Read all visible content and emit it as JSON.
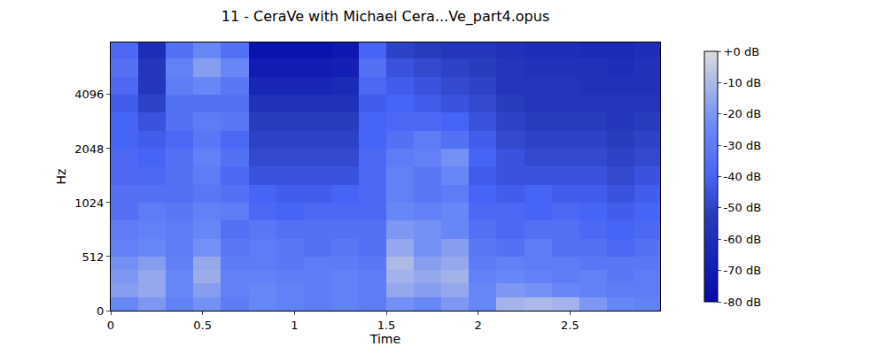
{
  "chart_data": {
    "type": "heatmap",
    "title": "11 - CeraVe with Michael Cera...Ve_part4.opus",
    "x_label": "Time",
    "y_label": "Hz",
    "x": [
      0,
      0.15,
      0.3,
      0.45,
      0.6,
      0.75,
      0.9,
      1.05,
      1.2,
      1.35,
      1.5,
      1.65,
      1.8,
      1.95,
      2.1,
      2.25,
      2.4,
      2.55,
      2.7,
      2.85,
      2.99
    ],
    "y": [
      0,
      128,
      256,
      384,
      512,
      645,
      812,
      1024,
      1290,
      1625,
      2048,
      2580,
      3251,
      4096,
      5161,
      6502,
      8000
    ],
    "cells": [
      [
        -25,
        -20,
        -28,
        -22,
        -30,
        -25,
        -28,
        -30,
        -28,
        -30,
        -22,
        -25,
        -20,
        -25,
        -12,
        -10,
        -12,
        -20,
        -25,
        -28
      ],
      [
        -18,
        -15,
        -25,
        -18,
        -28,
        -25,
        -28,
        -30,
        -28,
        -30,
        -15,
        -18,
        -15,
        -25,
        -20,
        -22,
        -25,
        -28,
        -30,
        -30
      ],
      [
        -20,
        -15,
        -25,
        -14,
        -28,
        -28,
        -30,
        -30,
        -28,
        -30,
        -12,
        -15,
        -12,
        -28,
        -25,
        -28,
        -30,
        -28,
        -32,
        -30
      ],
      [
        -22,
        -18,
        -28,
        -15,
        -30,
        -30,
        -32,
        -30,
        -30,
        -32,
        -10,
        -18,
        -15,
        -30,
        -28,
        -30,
        -30,
        -32,
        -32,
        -32
      ],
      [
        -28,
        -25,
        -30,
        -22,
        -32,
        -30,
        -32,
        -35,
        -32,
        -35,
        -15,
        -22,
        -18,
        -32,
        -35,
        -30,
        -35,
        -35,
        -38,
        -35
      ],
      [
        -30,
        -28,
        -30,
        -25,
        -35,
        -32,
        -35,
        -35,
        -35,
        -35,
        -20,
        -22,
        -25,
        -35,
        -38,
        -35,
        -35,
        -38,
        -40,
        -38
      ],
      [
        -35,
        -30,
        -32,
        -28,
        -30,
        -38,
        -40,
        -38,
        -38,
        -38,
        -25,
        -28,
        -25,
        -38,
        -38,
        -40,
        -38,
        -40,
        -42,
        -40
      ],
      [
        -35,
        -35,
        -35,
        -32,
        -35,
        -40,
        -42,
        -42,
        -40,
        -38,
        -28,
        -32,
        -30,
        -40,
        -42,
        -40,
        -42,
        -42,
        -45,
        -42
      ],
      [
        -38,
        -38,
        -35,
        -30,
        -38,
        -45,
        -45,
        -45,
        -45,
        -38,
        -28,
        -32,
        -25,
        -42,
        -45,
        -45,
        -45,
        -45,
        -48,
        -45
      ],
      [
        -38,
        -40,
        -35,
        -28,
        -35,
        -48,
        -48,
        -48,
        -48,
        -38,
        -30,
        -28,
        -22,
        -40,
        -45,
        -48,
        -48,
        -48,
        -50,
        -48
      ],
      [
        -40,
        -42,
        -38,
        -32,
        -38,
        -50,
        -50,
        -50,
        -50,
        -40,
        -35,
        -30,
        -35,
        -42,
        -48,
        -50,
        -50,
        -50,
        -52,
        -50
      ],
      [
        -40,
        -45,
        -35,
        -30,
        -32,
        -52,
        -52,
        -52,
        -52,
        -40,
        -38,
        -38,
        -40,
        -45,
        -50,
        -52,
        -52,
        -52,
        -55,
        -52
      ],
      [
        -42,
        -50,
        -35,
        -35,
        -35,
        -58,
        -58,
        -58,
        -58,
        -42,
        -40,
        -42,
        -45,
        -48,
        -52,
        -55,
        -55,
        -55,
        -55,
        -55
      ],
      [
        -38,
        -55,
        -30,
        -25,
        -32,
        -65,
        -65,
        -65,
        -62,
        -38,
        -42,
        -45,
        -48,
        -50,
        -55,
        -55,
        -55,
        -58,
        -58,
        -58
      ],
      [
        -35,
        -55,
        -28,
        -18,
        -25,
        -70,
        -70,
        -70,
        -68,
        -35,
        -45,
        -48,
        -50,
        -52,
        -55,
        -58,
        -58,
        -58,
        -60,
        -58
      ],
      [
        -38,
        -60,
        -35,
        -25,
        -35,
        -75,
        -75,
        -75,
        -72,
        -40,
        -50,
        -52,
        -55,
        -55,
        -58,
        -60,
        -60,
        -62,
        -62,
        -60
      ]
    ],
    "xlim": [
      0,
      2.99
    ],
    "ylim": [
      0,
      8000
    ],
    "xticks": [
      0,
      0.5,
      1,
      1.5,
      2,
      2.5
    ],
    "yticks": [
      0,
      512,
      1024,
      2048,
      4096
    ],
    "log": "y",
    "colorbar": {
      "range": [
        -80,
        0
      ],
      "ticks": [
        {
          "value": 0,
          "label": "+0 dB"
        },
        {
          "value": -10,
          "label": "-10 dB"
        },
        {
          "value": -20,
          "label": "-20 dB"
        },
        {
          "value": -30,
          "label": "-30 dB"
        },
        {
          "value": -40,
          "label": "-40 dB"
        },
        {
          "value": -50,
          "label": "-50 dB"
        },
        {
          "value": -60,
          "label": "-60 dB"
        },
        {
          "value": -70,
          "label": "-70 dB"
        },
        {
          "value": -80,
          "label": "-80 dB"
        }
      ]
    }
  }
}
